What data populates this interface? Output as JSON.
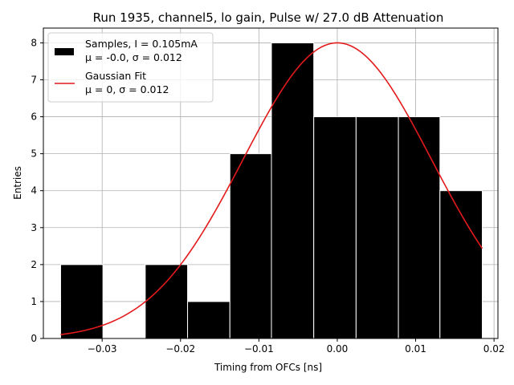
{
  "chart_data": {
    "type": "bar",
    "title": "Run 1935, channel5, lo gain, Pulse w/ 27.0 dB Attenuation",
    "xlabel": "Timing from OFCs [ns]",
    "ylabel": "Entries",
    "xlim": [
      -0.0375,
      0.0205
    ],
    "ylim": [
      0,
      8.4
    ],
    "xticks": [
      -0.03,
      -0.02,
      -0.01,
      0.0,
      0.01,
      0.02
    ],
    "xtick_labels": [
      "−0.03",
      "−0.02",
      "−0.01",
      "0.00",
      "0.01",
      "0.02"
    ],
    "yticks": [
      0,
      1,
      2,
      3,
      4,
      5,
      6,
      7,
      8
    ],
    "ytick_labels": [
      "0",
      "1",
      "2",
      "3",
      "4",
      "5",
      "6",
      "7",
      "8"
    ],
    "grid": true,
    "legend_position": "top-left",
    "histogram": {
      "bin_edges": [
        -0.0353,
        -0.0299,
        -0.0245,
        -0.0191,
        -0.0137,
        -0.0084,
        -0.003,
        0.0024,
        0.0078,
        0.0131,
        0.0185
      ],
      "counts": [
        2,
        0,
        2,
        1,
        5,
        8,
        6,
        6,
        6,
        4
      ],
      "color": "#000000",
      "edge_color": "#ffffff"
    },
    "fit": {
      "type": "gaussian",
      "amplitude": 8.0,
      "mu": 0.0,
      "sigma": 0.012,
      "x_range": [
        -0.0353,
        0.0185
      ],
      "color": "#e31a1c"
    },
    "legend": [
      {
        "symbol": "patch",
        "color": "#000000",
        "line1": "Samples, I = 0.105mA",
        "line2": "μ = -0.0, σ = 0.012"
      },
      {
        "symbol": "line",
        "color": "#e31a1c",
        "line1": "Gaussian Fit",
        "line2": "μ = 0, σ = 0.012"
      }
    ]
  }
}
